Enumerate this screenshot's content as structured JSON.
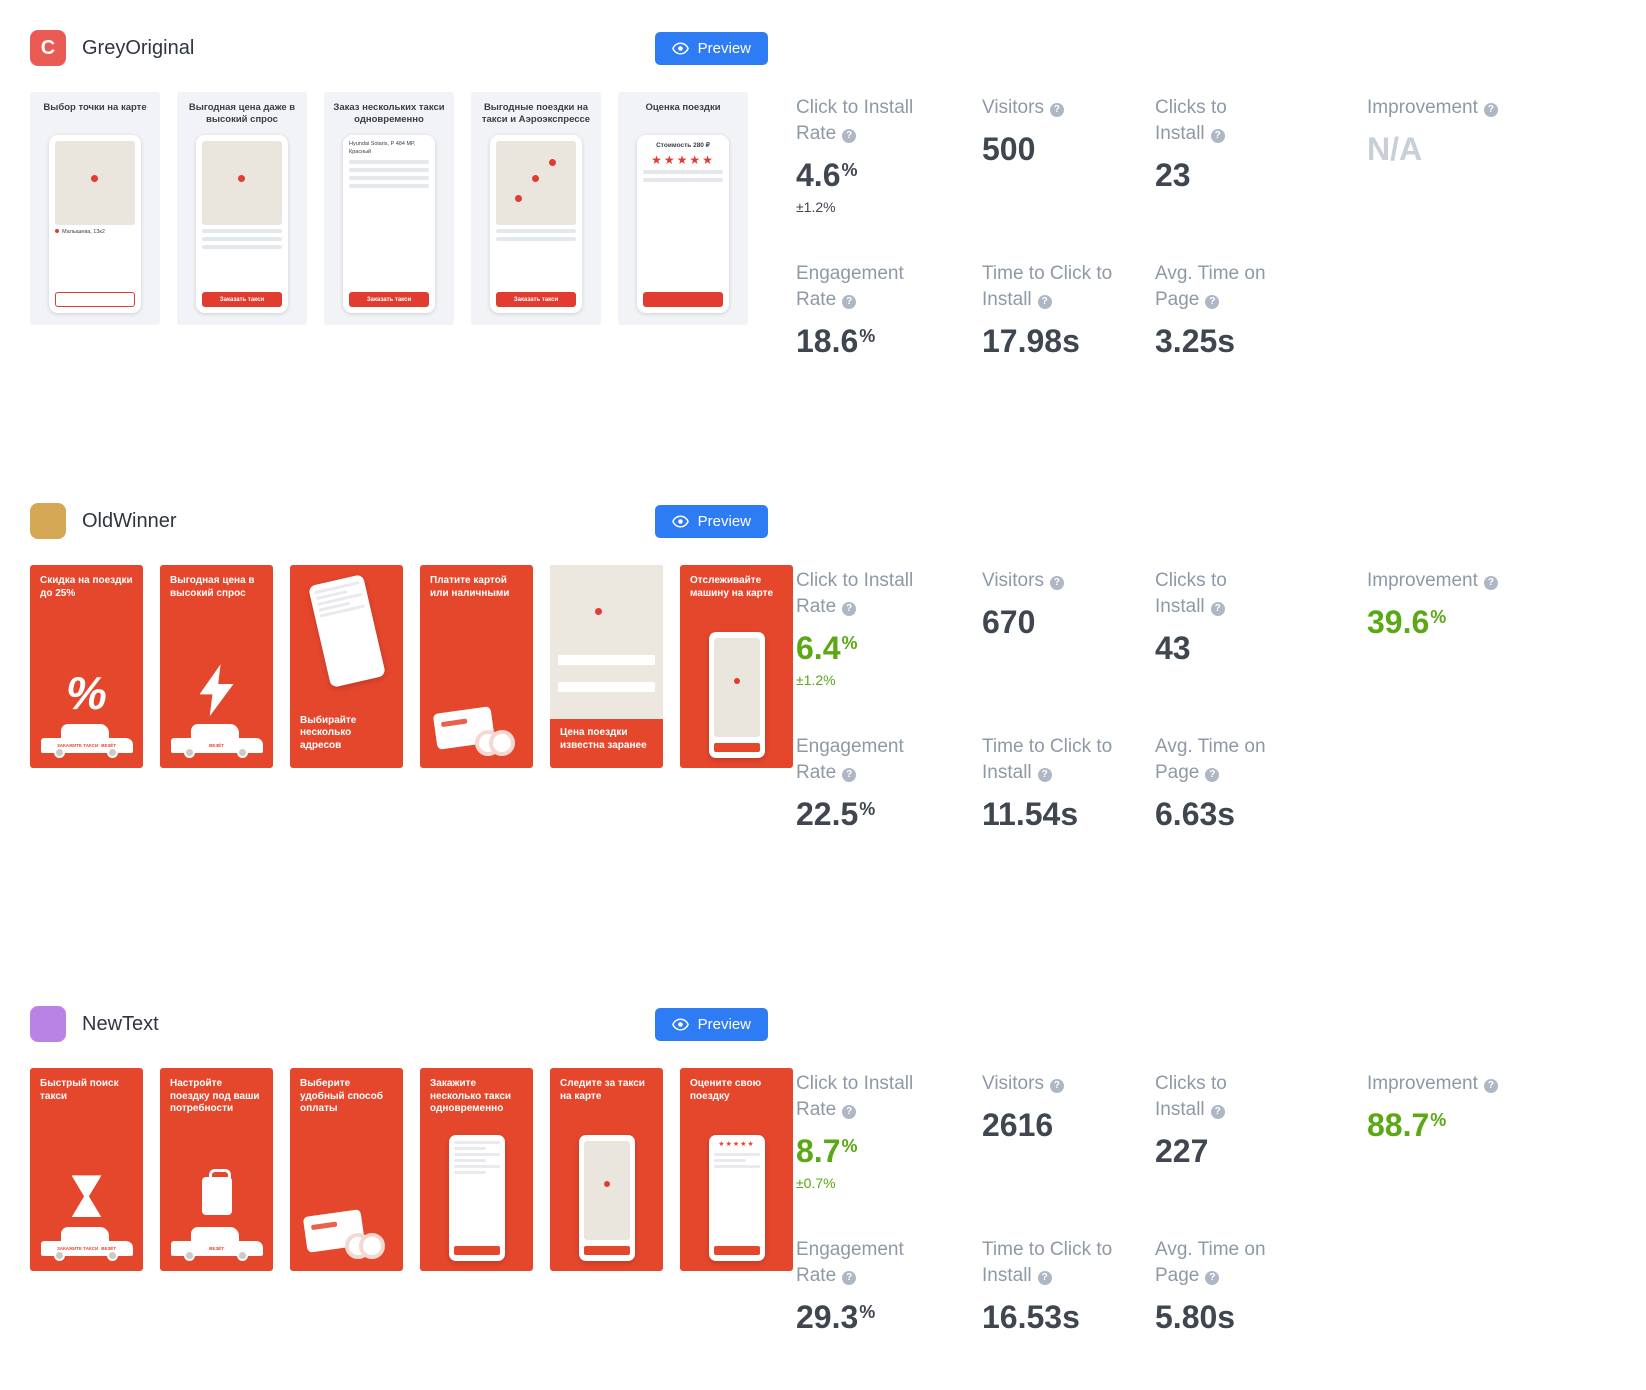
{
  "ui": {
    "preview_label": "Preview",
    "help_glyph": "?"
  },
  "colors": {
    "accent_blue": "#2e7cf4",
    "positive_green": "#5aa813",
    "card_red": "#e5472d",
    "muted_grey": "#c9cfd8",
    "label_grey": "#8f99a6",
    "value_dark": "#3f4650"
  },
  "variations": [
    {
      "name": "GreyOriginal",
      "theme": "light",
      "icon": {
        "letter": "C",
        "color": "#e85a52"
      },
      "screenshots": [
        {
          "title": "Выбор точки на карте",
          "map": true,
          "pins": 1,
          "text": "Малышева, 13к2",
          "text_dot": true,
          "button": "",
          "button_style": "outline"
        },
        {
          "title": "Выгодная цена даже в высокий спрос",
          "map": true,
          "pins": 1,
          "lines": 3,
          "button": "Заказать такси",
          "button_style": "solid"
        },
        {
          "title": "Заказ нескольких такси одновременно",
          "text": "Hyundai Solaris, Р 484 МР, Красный",
          "lines": 4,
          "button": "Заказать такси",
          "button_style": "solid"
        },
        {
          "title": "Выгодные поездки на такси и Аэроэкспрессе",
          "map": true,
          "pins": 3,
          "lines": 2,
          "button": "Заказать такси",
          "button_style": "solid"
        },
        {
          "title": "Оценка поездки",
          "text": "Стоимость 280 ₽",
          "text_center": true,
          "stars": "★★★★★",
          "lines": 2,
          "button": "",
          "button_style": "solid"
        }
      ],
      "metrics": [
        {
          "label": "Click to Install Rate",
          "value": "4.6",
          "suffix": "%",
          "sub": "±1.2%",
          "tone": "dark",
          "sub_tone": "dark"
        },
        {
          "label": "Visitors",
          "value": "500",
          "tone": "dark"
        },
        {
          "label": "Clicks to Install",
          "value": "23",
          "tone": "dark"
        },
        {
          "label": "Improvement",
          "value": "N/A",
          "tone": "muted"
        },
        {
          "label": "Engagement Rate",
          "value": "18.6",
          "suffix": "%",
          "tone": "dark"
        },
        {
          "label": "Time to Click to Install",
          "value": "17.98s",
          "tone": "dark"
        },
        {
          "label": "Avg. Time on Page",
          "value": "3.25s",
          "tone": "dark"
        }
      ]
    },
    {
      "name": "OldWinner",
      "theme": "red",
      "icon": {
        "letter": "",
        "color": "#d4a854"
      },
      "screenshots": [
        {
          "title": "Скидка на поездки до 25%",
          "visual": "percent-car",
          "car_label": "ЗАКАЖИТЕ ТАКСИ",
          "car_brand": "ВЕЗЁТ"
        },
        {
          "title": "Выгодная цена в высокий спрос",
          "visual": "bolt-car",
          "car_brand": "ВЕЗЁТ"
        },
        {
          "title": "Выбирайте несколько адресов",
          "visual": "phone-tilt",
          "title_pos": "bottom"
        },
        {
          "title": "Платите картой или наличными",
          "visual": "card-coins"
        },
        {
          "title": "Цена поездки известна заранее",
          "visual": "map-shot",
          "title_pos": "bottom"
        },
        {
          "title": "Отслеживайте машину на карте",
          "visual": "phone-map"
        }
      ],
      "metrics": [
        {
          "label": "Click to Install Rate",
          "value": "6.4",
          "suffix": "%",
          "sub": "±1.2%",
          "tone": "green",
          "sub_tone": "green"
        },
        {
          "label": "Visitors",
          "value": "670",
          "tone": "dark"
        },
        {
          "label": "Clicks to Install",
          "value": "43",
          "tone": "dark"
        },
        {
          "label": "Improvement",
          "value": "39.6",
          "suffix": "%",
          "tone": "green"
        },
        {
          "label": "Engagement Rate",
          "value": "22.5",
          "suffix": "%",
          "tone": "dark"
        },
        {
          "label": "Time to Click to Install",
          "value": "11.54s",
          "tone": "dark"
        },
        {
          "label": "Avg. Time on Page",
          "value": "6.63s",
          "tone": "dark"
        }
      ]
    },
    {
      "name": "NewText",
      "theme": "red",
      "icon": {
        "letter": "",
        "color": "#b983e6"
      },
      "screenshots": [
        {
          "title": "Быстрый поиск такси",
          "visual": "hourglass-car",
          "car_label": "ЗАКАЖИТЕ ТАКСИ",
          "car_brand": "ВЕЗЁТ"
        },
        {
          "title": "Настройте поездку под ваши потребности",
          "visual": "suitcase-car",
          "car_brand": "ВЕЗЁТ"
        },
        {
          "title": "Выберите удобный способ оплаты",
          "visual": "card-coins"
        },
        {
          "title": "Закажите несколько такси одновременно",
          "visual": "phone-list"
        },
        {
          "title": "Следите за такси на карте",
          "visual": "phone-map"
        },
        {
          "title": "Оцените свою поездку",
          "visual": "phone-stars",
          "stars": "★★★★★"
        }
      ],
      "metrics": [
        {
          "label": "Click to Install Rate",
          "value": "8.7",
          "suffix": "%",
          "sub": "±0.7%",
          "tone": "green",
          "sub_tone": "green"
        },
        {
          "label": "Visitors",
          "value": "2616",
          "tone": "dark"
        },
        {
          "label": "Clicks to Install",
          "value": "227",
          "tone": "dark"
        },
        {
          "label": "Improvement",
          "value": "88.7",
          "suffix": "%",
          "tone": "green"
        },
        {
          "label": "Engagement Rate",
          "value": "29.3",
          "suffix": "%",
          "tone": "dark"
        },
        {
          "label": "Time to Click to Install",
          "value": "16.53s",
          "tone": "dark"
        },
        {
          "label": "Avg. Time on Page",
          "value": "5.80s",
          "tone": "dark"
        }
      ]
    }
  ]
}
